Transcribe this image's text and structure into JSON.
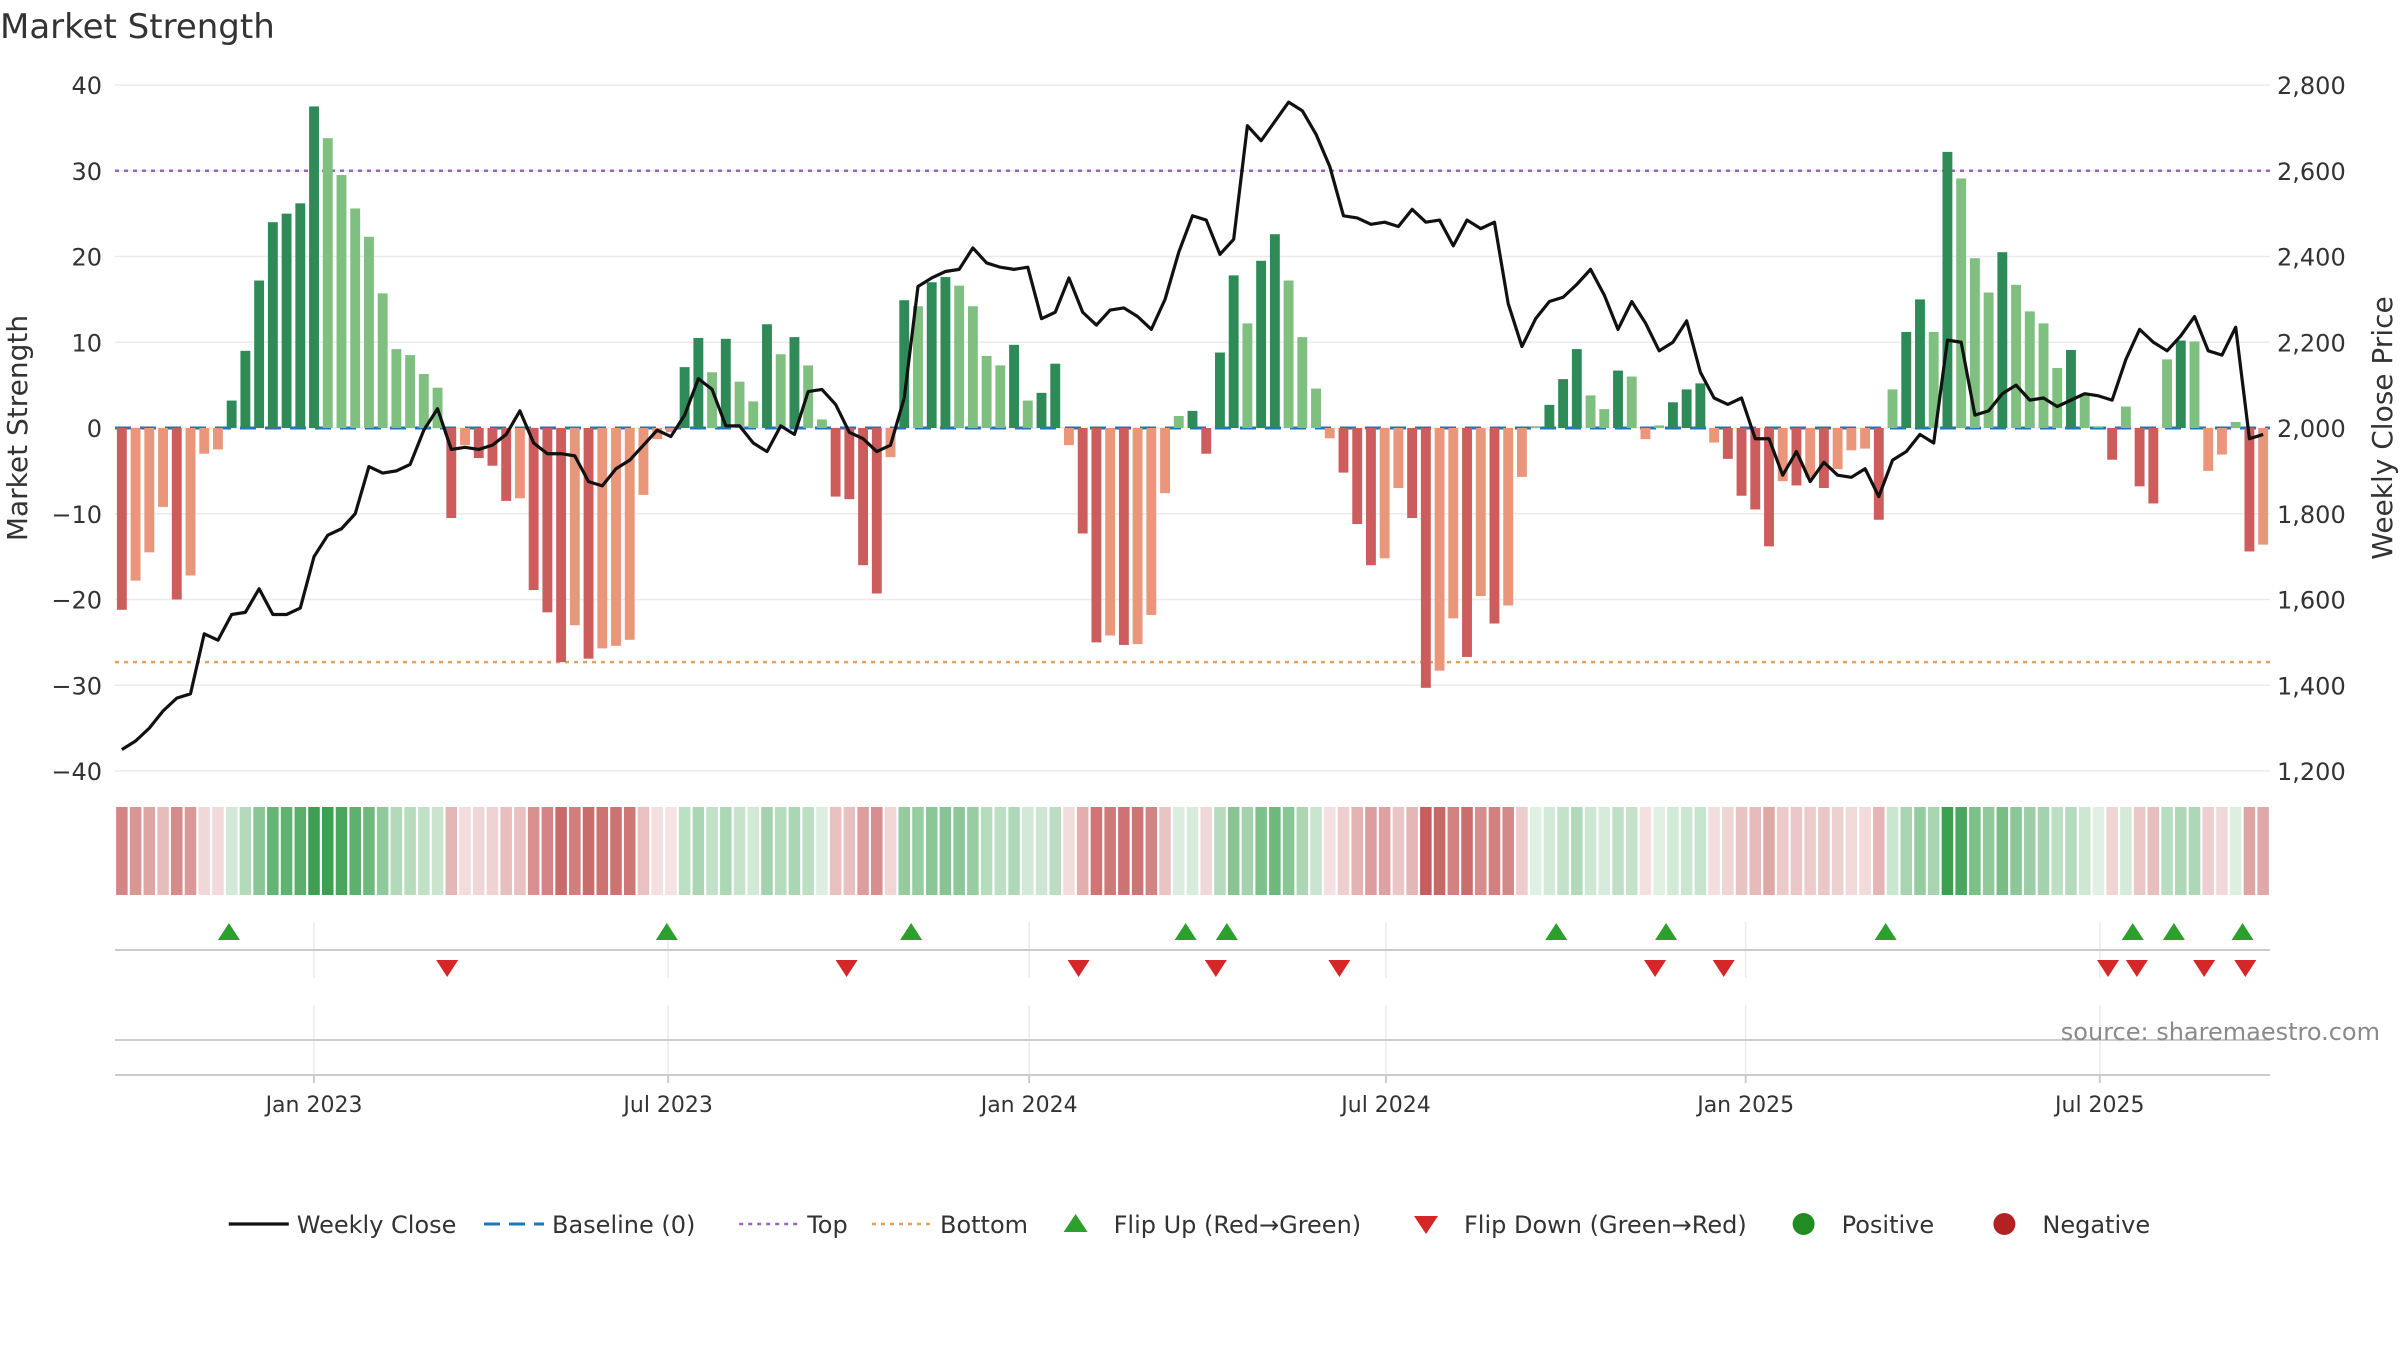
{
  "chart_data": {
    "type": "bar",
    "title": "Market Strength",
    "ylabel_left": "Market Strength",
    "ylabel_right": "Weekly Close Price",
    "ylim_left": [
      -40,
      40
    ],
    "ylim_right": [
      1200,
      2800
    ],
    "left_ticks": [
      "40",
      "30",
      "20",
      "10",
      "0",
      "−10",
      "−20",
      "−30",
      "−40"
    ],
    "right_ticks": [
      "2,800",
      "2,600",
      "2,400",
      "2,200",
      "2,000",
      "1,800",
      "1,600",
      "1,400",
      "1,200"
    ],
    "top_level": 30,
    "bottom_level": -27.3,
    "x_ticks": [
      "Jan 2023",
      "Jul 2023",
      "Jan 2024",
      "Jul 2024",
      "Jan 2025",
      "Jul 2025"
    ],
    "x_tick_weeks": [
      14.5,
      40.3,
      66.6,
      92.6,
      118.8,
      144.6
    ],
    "strength": [
      -21.2,
      -17.8,
      -14.5,
      -9.2,
      -20,
      -17.2,
      -3,
      -2.5,
      3.2,
      9,
      17.2,
      24,
      25,
      26.2,
      37.5,
      33.8,
      29.5,
      25.6,
      22.3,
      15.7,
      9.2,
      8.5,
      6.3,
      4.7,
      -10.5,
      -2,
      -3.5,
      -4.4,
      -8.5,
      -8.2,
      -18.9,
      -21.5,
      -27.3,
      -23,
      -26.9,
      -25.7,
      -25.4,
      -24.7,
      -7.8,
      -1.3,
      -0.5,
      7.1,
      10.5,
      6.5,
      10.4,
      5.4,
      3.1,
      12.1,
      8.6,
      10.6,
      7.3,
      1,
      -8,
      -8.3,
      -16,
      -19.3,
      -3.4,
      14.9,
      14.2,
      17,
      17.6,
      16.6,
      14.2,
      8.4,
      7.3,
      9.7,
      3.2,
      4.1,
      7.5,
      -2,
      -12.3,
      -25,
      -24.2,
      -25.3,
      -25.2,
      -21.8,
      -7.6,
      1.4,
      2,
      -3,
      8.8,
      17.8,
      12.2,
      19.5,
      22.6,
      17.2,
      10.6,
      4.6,
      -1.2,
      -5.2,
      -11.2,
      -16,
      -15.2,
      -7,
      -10.5,
      -30.3,
      -28.3,
      -22.2,
      -26.7,
      -19.6,
      -22.8,
      -20.7,
      -5.7,
      0.2,
      2.7,
      5.7,
      9.2,
      3.8,
      2.2,
      6.7,
      6,
      -1.3,
      0.3,
      3,
      4.5,
      5.2,
      -1.7,
      -3.6,
      -7.9,
      -9.5,
      -13.8,
      -6.2,
      -6.7,
      -5.8,
      -7,
      -4.8,
      -2.6,
      -2.4,
      -10.7,
      4.5,
      11.2,
      15,
      11.2,
      32.2,
      29.1,
      19.8,
      15.8,
      20.5,
      16.7,
      13.6,
      12.2,
      7,
      9.1,
      4,
      0.2,
      -3.7,
      2.5,
      -6.8,
      -8.8,
      8,
      10.2,
      10.1,
      -5,
      -3.1,
      0.7,
      -14.4,
      -13.6
    ],
    "weekly_close": [
      1250,
      1270,
      1300,
      1340,
      1370,
      1380,
      1520,
      1505,
      1565,
      1570,
      1625,
      1565,
      1565,
      1580,
      1700,
      1750,
      1765,
      1800,
      1910,
      1895,
      1900,
      1915,
      1995,
      2045,
      1950,
      1955,
      1950,
      1960,
      1985,
      2040,
      1965,
      1940,
      1940,
      1935,
      1875,
      1865,
      1905,
      1925,
      1960,
      1995,
      1980,
      2030,
      2115,
      2090,
      2005,
      2005,
      1965,
      1945,
      2005,
      1985,
      2085,
      2090,
      2055,
      1990,
      1975,
      1945,
      1960,
      2070,
      2330,
      2350,
      2365,
      2370,
      2420,
      2385,
      2375,
      2370,
      2375,
      2255,
      2270,
      2350,
      2270,
      2240,
      2275,
      2280,
      2260,
      2230,
      2300,
      2410,
      2495,
      2485,
      2405,
      2440,
      2705,
      2670,
      2715,
      2760,
      2740,
      2685,
      2610,
      2495,
      2490,
      2475,
      2480,
      2470,
      2510,
      2480,
      2485,
      2425,
      2485,
      2465,
      2480,
      2290,
      2190,
      2255,
      2295,
      2305,
      2335,
      2370,
      2310,
      2230,
      2295,
      2245,
      2180,
      2200,
      2250,
      2130,
      2070,
      2055,
      2070,
      1975,
      1975,
      1890,
      1945,
      1875,
      1920,
      1890,
      1885,
      1905,
      1840,
      1925,
      1945,
      1985,
      1965,
      2205,
      2200,
      2030,
      2040,
      2080,
      2100,
      2065,
      2070,
      2050,
      2065,
      2080,
      2075,
      2065,
      2160,
      2230,
      2200,
      2180,
      2215,
      2260,
      2180,
      2170,
      2235,
      1975,
      1985
    ],
    "flip_up_weeks": [
      8.3,
      40.2,
      58,
      78,
      81,
      105,
      113,
      129,
      147,
      150,
      155
    ],
    "flip_down_weeks": [
      24.2,
      53.3,
      70.2,
      80.2,
      89.2,
      112.2,
      117.2,
      145.2,
      147.3,
      152.2,
      155.2
    ],
    "legend": [
      {
        "label": "Weekly Close",
        "symbol": "line",
        "color": "#111111"
      },
      {
        "label": "Baseline (0)",
        "symbol": "dash",
        "color": "#1f77b4"
      },
      {
        "label": "Top",
        "symbol": "dot",
        "color": "#9467bd"
      },
      {
        "label": "Bottom",
        "symbol": "dot",
        "color": "#e8a15a"
      },
      {
        "label": "Flip Up (Red→Green)",
        "symbol": "triangle-up",
        "color": "#2ca02c"
      },
      {
        "label": "Flip Down (Green→Red)",
        "symbol": "triangle-down",
        "color": "#d62728"
      },
      {
        "label": "Positive",
        "symbol": "circle",
        "color": "#228b22"
      },
      {
        "label": "Negative",
        "symbol": "circle",
        "color": "#b22222"
      }
    ],
    "source": "source: sharemaestro.com"
  },
  "colors": {
    "bar_pos_strong": "#2e8b57",
    "bar_pos_weak": "#7fbf7f",
    "bar_neg_strong": "#cd5c5c",
    "bar_neg_weak": "#e9967a",
    "close_line": "#111111",
    "baseline": "#1f77b4",
    "top": "#9467bd",
    "bottom": "#e8a15a",
    "flip_up": "#2ca02c",
    "flip_down": "#d62728"
  }
}
